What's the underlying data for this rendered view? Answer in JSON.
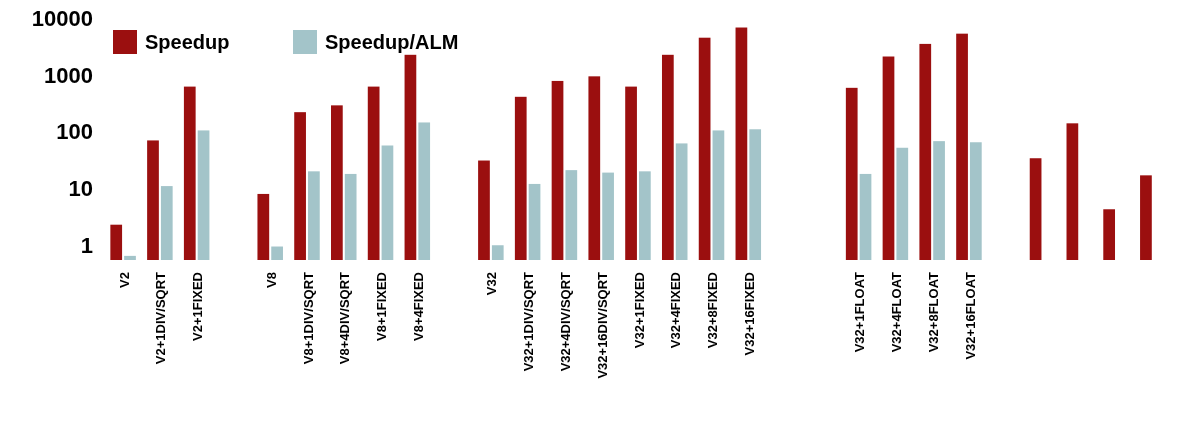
{
  "chart_data": {
    "type": "bar",
    "log": true,
    "legend": "top left",
    "categories": [
      "V2",
      "V2+1DIV/SQRT",
      "V2+1FIXED",
      null,
      "V8",
      "V8+1DIV/SQRT",
      "V8+4DIV/SQRT",
      "V8+1FIXED",
      "V8+4FIXED",
      null,
      "V32",
      "V32+1DIV/SQRT",
      "V32+4DIV/SQRT",
      "V32+16DIV/SQRT",
      "V32+1FIXED",
      "V32+4FIXED",
      "V32+8FIXED",
      "V32+16FIXED",
      null,
      null,
      "V32+1FLOAT",
      "V32+4FLOAT",
      "V32+8FLOAT",
      "V32+16FLOAT",
      null,
      null,
      null,
      null,
      null
    ],
    "series": [
      {
        "name": "Speedup",
        "color": "#9b0f0f",
        "values": [
          2.3,
          70,
          620,
          null,
          8,
          220,
          290,
          620,
          2250,
          null,
          31,
          410,
          780,
          940,
          620,
          2250,
          4500,
          6800,
          null,
          null,
          590,
          2100,
          3500,
          5300,
          null,
          34,
          140,
          4.3,
          17
        ]
      },
      {
        "name": "Speedup/ALM",
        "color": "#a3c4c9",
        "values": [
          0.65,
          11,
          105,
          null,
          0.95,
          20,
          18,
          57,
          145,
          null,
          1,
          12,
          21,
          19,
          20,
          62,
          105,
          110,
          null,
          null,
          18,
          52,
          68,
          65,
          null,
          null,
          null,
          null,
          null
        ]
      }
    ],
    "ylim": [
      0.55,
      10000
    ],
    "yticks": [
      1,
      10,
      100,
      1000,
      10000
    ]
  }
}
